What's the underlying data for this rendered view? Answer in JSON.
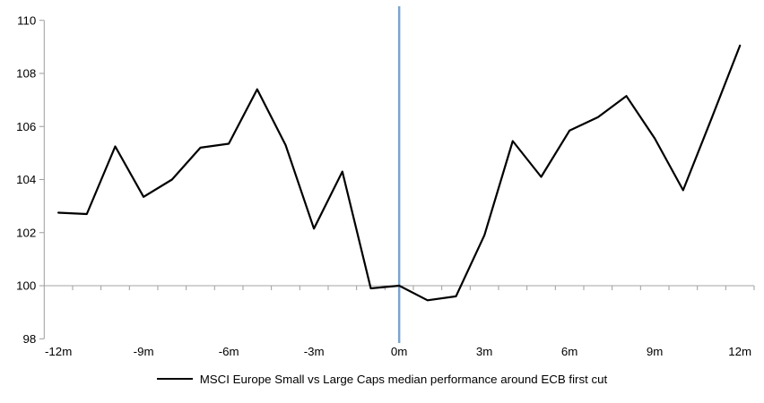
{
  "chart_data": {
    "type": "line",
    "title": "",
    "x": [
      -12,
      -11,
      -10,
      -9,
      -8,
      -7,
      -6,
      -5,
      -4,
      -3,
      -2,
      -1,
      0,
      1,
      2,
      3,
      4,
      5,
      6,
      7,
      8,
      9,
      10,
      11,
      12
    ],
    "series": [
      {
        "name": "MSCI Europe Small vs Large Caps median performance around ECB first cut",
        "color": "#000000",
        "values": [
          102.75,
          102.7,
          105.25,
          103.35,
          104.0,
          105.2,
          105.35,
          107.4,
          105.3,
          102.15,
          104.3,
          99.9,
          100.0,
          99.45,
          99.6,
          101.9,
          105.45,
          104.1,
          105.85,
          106.35,
          107.15,
          105.55,
          103.6,
          106.3,
          109.05
        ]
      }
    ],
    "xlabel": "",
    "ylabel": "",
    "ylim": [
      98,
      110
    ],
    "y_ticks": [
      110,
      108,
      106,
      104,
      102,
      100,
      98
    ],
    "x_tick_months": [
      -12,
      -9,
      -6,
      -3,
      0,
      3,
      6,
      9,
      12
    ],
    "x_tick_labels": [
      "-12m",
      "-9m",
      "-6m",
      "-3m",
      "0m",
      "3m",
      "6m",
      "9m",
      "12m"
    ],
    "grid": "off",
    "legend_position": "bottom",
    "reference_lines": {
      "horizontal_at_value": 100,
      "horizontal_color": "#a6a6a6",
      "vertical_at_x": 0,
      "vertical_color": "#7aa4cf"
    },
    "axis_color": "#9d9d9d"
  },
  "legend": {
    "label": "MSCI Europe Small vs Large Caps median performance around ECB first cut"
  },
  "colors": {
    "background": "#ffffff",
    "series_line": "#000000",
    "event_line_blue": "#7aa4cf",
    "baseline_gray": "#a6a6a6",
    "text": "#000000"
  }
}
